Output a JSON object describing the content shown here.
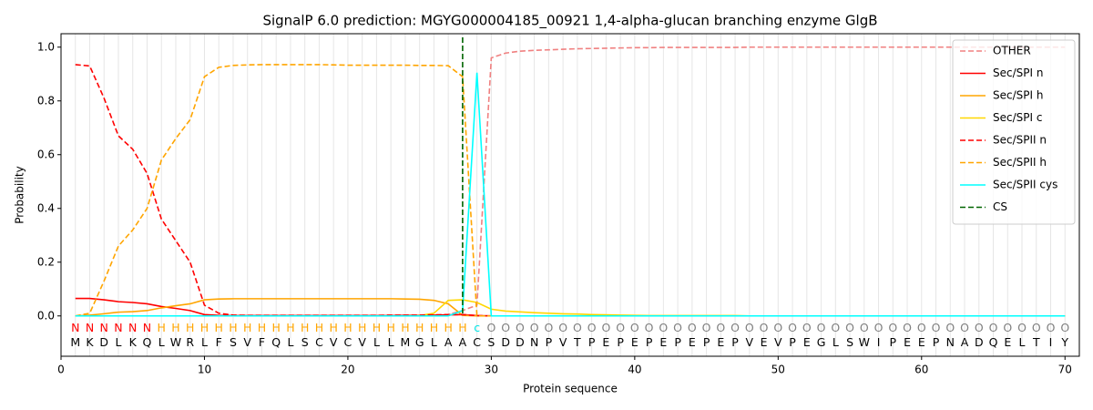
{
  "chart_data": {
    "type": "line",
    "title": "SignalP 6.0 prediction: MGYG000004185_00921 1,4-alpha-glucan branching enzyme GlgB",
    "xlabel": "Protein sequence",
    "ylabel": "Probability",
    "xlim": [
      0,
      71
    ],
    "ylim": [
      -0.15,
      1.05
    ],
    "xticks": [
      0,
      10,
      20,
      30,
      40,
      50,
      60,
      70
    ],
    "yticks": [
      {
        "value": 0,
        "label": "0.0"
      },
      {
        "value": 0.2,
        "label": "0.2"
      },
      {
        "value": 0.4,
        "label": "0.4"
      },
      {
        "value": 0.6,
        "label": "0.6"
      },
      {
        "value": 0.8,
        "label": "0.8"
      },
      {
        "value": 1,
        "label": "1.0"
      }
    ],
    "grid": true,
    "legend": "upper right",
    "x": [
      1,
      2,
      3,
      4,
      5,
      6,
      7,
      8,
      9,
      10,
      11,
      12,
      13,
      14,
      15,
      16,
      17,
      18,
      19,
      20,
      21,
      22,
      23,
      24,
      25,
      26,
      27,
      28,
      29,
      30,
      31,
      32,
      33,
      34,
      35,
      36,
      37,
      38,
      39,
      40,
      41,
      42,
      43,
      44,
      45,
      46,
      47,
      48,
      49,
      50,
      51,
      52,
      53,
      54,
      55,
      56,
      57,
      58,
      59,
      60,
      61,
      62,
      63,
      64,
      65,
      66,
      67,
      68,
      69,
      70
    ],
    "sequence": [
      "M",
      "K",
      "D",
      "L",
      "K",
      "Q",
      "L",
      "W",
      "R",
      "L",
      "F",
      "S",
      "V",
      "F",
      "Q",
      "L",
      "S",
      "C",
      "V",
      "C",
      "V",
      "L",
      "L",
      "M",
      "G",
      "L",
      "A",
      "A",
      "C",
      "S",
      "D",
      "D",
      "N",
      "P",
      "V",
      "T",
      "P",
      "E",
      "P",
      "E",
      "P",
      "E",
      "P",
      "E",
      "P",
      "E",
      "P",
      "V",
      "E",
      "V",
      "P",
      "E",
      "G",
      "L",
      "S",
      "W",
      "I",
      "P",
      "E",
      "E",
      "P",
      "N",
      "A",
      "D",
      "Q",
      "E",
      "L",
      "T",
      "I",
      "Y"
    ],
    "regions": [
      "N",
      "N",
      "N",
      "N",
      "N",
      "N",
      "H",
      "H",
      "H",
      "H",
      "H",
      "H",
      "H",
      "H",
      "H",
      "H",
      "H",
      "H",
      "H",
      "H",
      "H",
      "H",
      "H",
      "H",
      "H",
      "H",
      "H",
      "H",
      "c",
      "O",
      "O",
      "O",
      "O",
      "O",
      "O",
      "O",
      "O",
      "O",
      "O",
      "O",
      "O",
      "O",
      "O",
      "O",
      "O",
      "O",
      "O",
      "O",
      "O",
      "O",
      "O",
      "O",
      "O",
      "O",
      "O",
      "O",
      "O",
      "O",
      "O",
      "O",
      "O",
      "O",
      "O",
      "O",
      "O",
      "O",
      "O",
      "O",
      "O",
      "O"
    ],
    "region_colors": {
      "N": "#ff0000",
      "H": "#ffa500",
      "c": "#00e5e5",
      "O": "#808080"
    },
    "series": [
      {
        "name": "OTHER",
        "color": "#f08080",
        "dashed": true,
        "values": [
          0,
          0,
          0,
          0,
          0,
          0,
          0,
          0,
          0,
          0,
          0,
          0,
          0,
          0,
          0,
          0,
          0,
          0,
          0,
          0,
          0,
          0,
          0,
          0,
          0,
          0,
          0.005,
          0.02,
          0.04,
          0.96,
          0.978,
          0.985,
          0.988,
          0.99,
          0.992,
          0.994,
          0.995,
          0.996,
          0.997,
          0.998,
          0.998,
          0.999,
          0.999,
          0.999,
          0.999,
          0.999,
          0.999,
          1,
          1,
          1,
          1,
          1,
          1,
          1,
          1,
          1,
          1,
          1,
          1,
          1,
          1,
          1,
          1,
          1,
          1,
          1,
          1,
          1,
          1,
          1
        ]
      },
      {
        "name": "Sec/SPI n",
        "color": "#ff0000",
        "dashed": false,
        "values": [
          0.065,
          0.065,
          0.06,
          0.053,
          0.05,
          0.045,
          0.035,
          0.028,
          0.02,
          0.005,
          0.002,
          0.001,
          0.001,
          0.001,
          0.001,
          0.001,
          0.001,
          0.001,
          0.001,
          0.001,
          0.001,
          0.001,
          0.001,
          0.002,
          0.002,
          0.003,
          0.004,
          0.005,
          0.001,
          0,
          0,
          0,
          0,
          0,
          0,
          0,
          0,
          0,
          0,
          0,
          0,
          0,
          0,
          0,
          0,
          0,
          0,
          0,
          0,
          0,
          0,
          0,
          0,
          0,
          0,
          0,
          0,
          0,
          0,
          0,
          0,
          0,
          0,
          0,
          0,
          0,
          0,
          0,
          0,
          0
        ]
      },
      {
        "name": "Sec/SPI h",
        "color": "#ffa500",
        "dashed": false,
        "values": [
          0,
          0.003,
          0.008,
          0.014,
          0.016,
          0.02,
          0.03,
          0.038,
          0.045,
          0.06,
          0.063,
          0.064,
          0.064,
          0.064,
          0.064,
          0.064,
          0.064,
          0.064,
          0.064,
          0.064,
          0.064,
          0.064,
          0.064,
          0.063,
          0.062,
          0.058,
          0.045,
          0.002,
          0,
          0,
          0,
          0,
          0,
          0,
          0,
          0,
          0,
          0,
          0,
          0,
          0,
          0,
          0,
          0,
          0,
          0,
          0,
          0,
          0,
          0,
          0,
          0,
          0,
          0,
          0,
          0,
          0,
          0,
          0,
          0,
          0,
          0,
          0,
          0,
          0,
          0,
          0,
          0,
          0,
          0
        ]
      },
      {
        "name": "Sec/SPI c",
        "color": "#ffd700",
        "dashed": false,
        "values": [
          0,
          0,
          0,
          0,
          0,
          0,
          0,
          0,
          0,
          0,
          0,
          0,
          0,
          0,
          0,
          0,
          0,
          0,
          0,
          0,
          0,
          0,
          0,
          0,
          0.001,
          0.01,
          0.058,
          0.06,
          0.05,
          0.025,
          0.018,
          0.015,
          0.012,
          0.01,
          0.008,
          0.007,
          0.005,
          0.004,
          0.003,
          0.002,
          0.001,
          0.001,
          0.001,
          0.001,
          0.001,
          0.001,
          0.001,
          0,
          0,
          0,
          0,
          0,
          0,
          0,
          0,
          0,
          0,
          0,
          0,
          0,
          0,
          0,
          0,
          0,
          0,
          0,
          0,
          0,
          0,
          0
        ]
      },
      {
        "name": "Sec/SPII n",
        "color": "#ff0000",
        "dashed": true,
        "values": [
          0.935,
          0.93,
          0.81,
          0.67,
          0.62,
          0.53,
          0.36,
          0.28,
          0.2,
          0.04,
          0.01,
          0.003,
          0.002,
          0.002,
          0.002,
          0.002,
          0.002,
          0.002,
          0.002,
          0.002,
          0.002,
          0.002,
          0.003,
          0.003,
          0.003,
          0.004,
          0.005,
          0.005,
          0.001,
          0,
          0,
          0,
          0,
          0,
          0,
          0,
          0,
          0,
          0,
          0,
          0,
          0,
          0,
          0,
          0,
          0,
          0,
          0,
          0,
          0,
          0,
          0,
          0,
          0,
          0,
          0,
          0,
          0,
          0,
          0,
          0,
          0,
          0,
          0,
          0,
          0,
          0,
          0,
          0,
          0
        ]
      },
      {
        "name": "Sec/SPII h",
        "color": "#ffa500",
        "dashed": true,
        "values": [
          0,
          0.01,
          0.13,
          0.26,
          0.32,
          0.4,
          0.58,
          0.66,
          0.73,
          0.89,
          0.925,
          0.932,
          0.934,
          0.935,
          0.935,
          0.935,
          0.935,
          0.935,
          0.934,
          0.933,
          0.933,
          0.933,
          0.933,
          0.933,
          0.932,
          0.932,
          0.931,
          0.89,
          0,
          0,
          0,
          0,
          0,
          0,
          0,
          0,
          0,
          0,
          0,
          0,
          0,
          0,
          0,
          0,
          0,
          0,
          0,
          0,
          0,
          0,
          0,
          0,
          0,
          0,
          0,
          0,
          0,
          0,
          0,
          0,
          0,
          0,
          0,
          0,
          0,
          0,
          0,
          0,
          0,
          0
        ]
      },
      {
        "name": "Sec/SPII cys",
        "color": "#00ffff",
        "dashed": false,
        "values": [
          0,
          0,
          0,
          0,
          0,
          0,
          0,
          0,
          0,
          0,
          0,
          0,
          0,
          0,
          0,
          0,
          0,
          0,
          0,
          0,
          0,
          0,
          0,
          0,
          0,
          0,
          0,
          0.02,
          0.905,
          0,
          0,
          0,
          0,
          0,
          0,
          0,
          0,
          0,
          0,
          0,
          0,
          0,
          0,
          0,
          0,
          0,
          0,
          0,
          0,
          0,
          0,
          0,
          0,
          0,
          0,
          0,
          0,
          0,
          0,
          0,
          0,
          0,
          0,
          0,
          0,
          0,
          0,
          0,
          0,
          0
        ]
      }
    ],
    "markers": [
      {
        "name": "CS",
        "color": "#006400",
        "x": 28
      }
    ]
  }
}
